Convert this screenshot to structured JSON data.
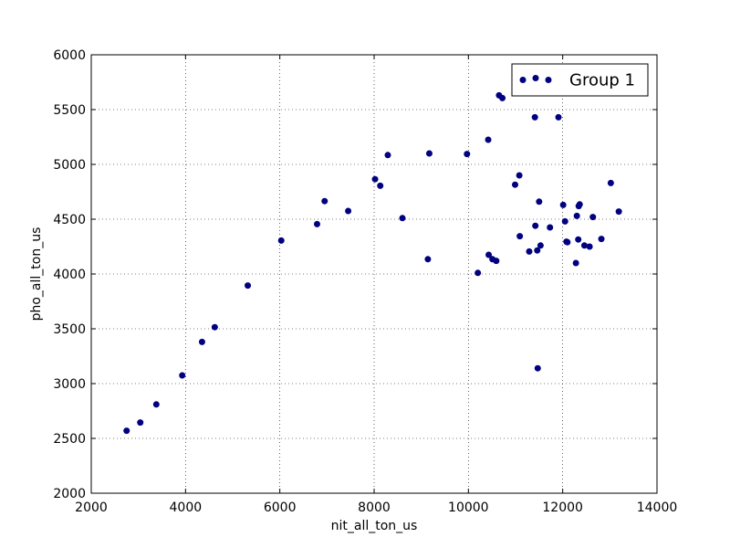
{
  "chart_data": {
    "type": "scatter",
    "xlabel": "nit_all_ton_us",
    "ylabel": "pho_all_ton_us",
    "xlim": [
      2000,
      14000
    ],
    "ylim": [
      2000,
      6000
    ],
    "xticks": [
      2000,
      4000,
      6000,
      8000,
      10000,
      12000,
      14000
    ],
    "yticks": [
      2000,
      2500,
      3000,
      3500,
      4000,
      4500,
      5000,
      5500,
      6000
    ],
    "grid": true,
    "grid_style": "dotted",
    "legend_position": "top-right",
    "series": [
      {
        "name": "Group 1",
        "color": "#000080",
        "points": [
          [
            2750,
            2570
          ],
          [
            3040,
            2645
          ],
          [
            3380,
            2810
          ],
          [
            3930,
            3075
          ],
          [
            4350,
            3380
          ],
          [
            4620,
            3515
          ],
          [
            5320,
            3895
          ],
          [
            6030,
            4305
          ],
          [
            6790,
            4455
          ],
          [
            6950,
            4665
          ],
          [
            7450,
            4575
          ],
          [
            8020,
            4865
          ],
          [
            8130,
            4805
          ],
          [
            8290,
            5085
          ],
          [
            8600,
            4510
          ],
          [
            9140,
            4135
          ],
          [
            9170,
            5100
          ],
          [
            9970,
            5095
          ],
          [
            10200,
            4010
          ],
          [
            10420,
            5225
          ],
          [
            10430,
            4175
          ],
          [
            10510,
            4135
          ],
          [
            10590,
            4120
          ],
          [
            10650,
            5630
          ],
          [
            10720,
            5605
          ],
          [
            10990,
            4815
          ],
          [
            11080,
            4900
          ],
          [
            11090,
            4345
          ],
          [
            11290,
            4205
          ],
          [
            11410,
            5430
          ],
          [
            11420,
            4440
          ],
          [
            11460,
            4215
          ],
          [
            11470,
            3140
          ],
          [
            11500,
            4660
          ],
          [
            11530,
            4260
          ],
          [
            11730,
            4425
          ],
          [
            11910,
            5430
          ],
          [
            12010,
            4630
          ],
          [
            12050,
            4480
          ],
          [
            12080,
            4295
          ],
          [
            12100,
            4290
          ],
          [
            12280,
            4100
          ],
          [
            12300,
            4530
          ],
          [
            12330,
            4315
          ],
          [
            12340,
            4620
          ],
          [
            12360,
            4635
          ],
          [
            12460,
            4260
          ],
          [
            12570,
            4250
          ],
          [
            12640,
            4520
          ],
          [
            12820,
            4320
          ],
          [
            13020,
            4830
          ],
          [
            13190,
            4570
          ]
        ]
      }
    ]
  }
}
